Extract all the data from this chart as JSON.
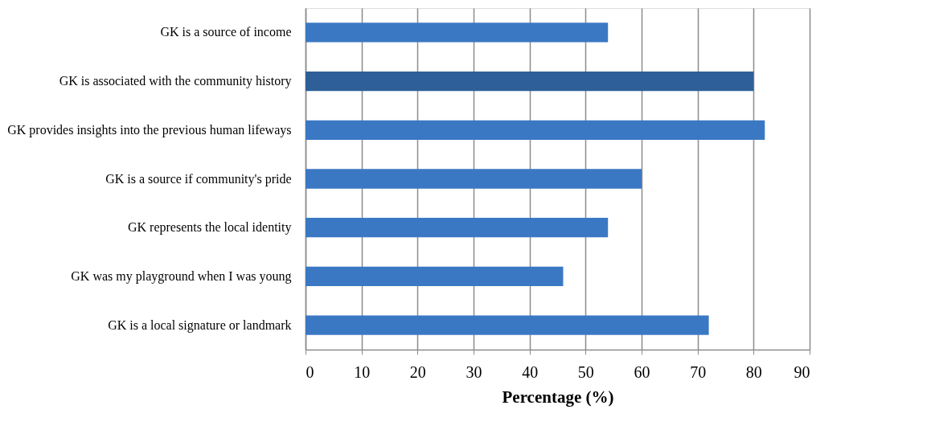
{
  "chart_data": {
    "type": "bar",
    "orientation": "horizontal",
    "xlabel": "Percentage (%)",
    "categories": [
      "GK is a source of income",
      "GK is associated with the community history",
      "GK provides insights into the previous human lifeways",
      "GK is a source if community's pride",
      "GK represents the local identity",
      "GK was my playground when I was young",
      "GK is a local signature or landmark"
    ],
    "values": [
      54,
      80,
      82,
      60,
      54,
      46,
      72
    ],
    "colors": [
      "#3b78c4",
      "#2e5f98",
      "#3b78c4",
      "#3b78c4",
      "#3b78c4",
      "#3b78c4",
      "#3b78c4"
    ],
    "xlim": [
      0,
      90
    ],
    "xticks": [
      0,
      10,
      20,
      30,
      40,
      50,
      60,
      70,
      80,
      90
    ],
    "grid": "x"
  }
}
